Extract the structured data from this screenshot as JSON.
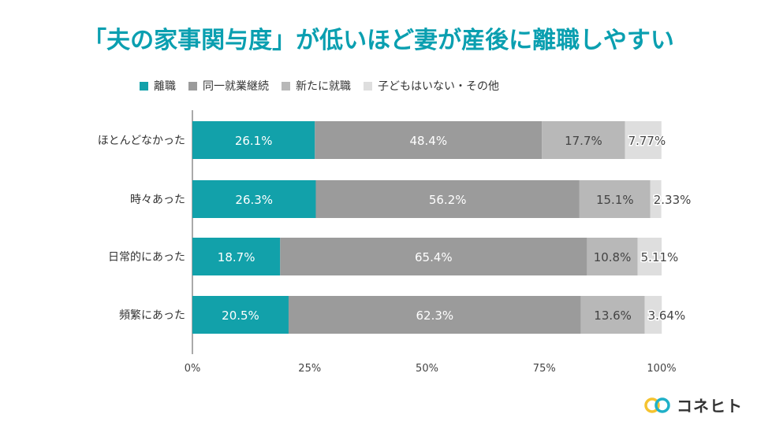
{
  "title": "「夫の家事関与度」が低いほど妻が産後に離職しやすい",
  "brand": {
    "name": "コネヒト"
  },
  "chart_data": {
    "type": "bar",
    "orientation": "horizontal",
    "stacked": true,
    "categories": [
      "ほとんどなかった",
      "時々あった",
      "日常的にあった",
      "頻繁にあった"
    ],
    "series": [
      {
        "name": "離職",
        "color": "#12a1aa",
        "values": [
          26.1,
          26.3,
          18.7,
          20.5
        ],
        "labels": [
          "26.1%",
          "26.3%",
          "18.7%",
          "20.5%"
        ]
      },
      {
        "name": "同一就業継続",
        "color": "#9b9b9b",
        "values": [
          48.4,
          56.2,
          65.4,
          62.3
        ],
        "labels": [
          "48.4%",
          "56.2%",
          "65.4%",
          "62.3%"
        ]
      },
      {
        "name": "新たに就職",
        "color": "#b8b8b8",
        "values": [
          17.7,
          15.1,
          10.8,
          13.6
        ],
        "labels": [
          "17.7%",
          "15.1%",
          "10.8%",
          "13.6%"
        ]
      },
      {
        "name": "子どもはいない・その他",
        "color": "#dedede",
        "values": [
          7.77,
          2.33,
          5.11,
          3.64
        ],
        "labels": [
          "7.77%",
          "2.33%",
          "5.11%",
          "3.64%"
        ]
      }
    ],
    "xlim": [
      0,
      100
    ],
    "xticks": [
      "0%",
      "25%",
      "50%",
      "75%",
      "100%"
    ],
    "legend_position": "top-left",
    "title": "「夫の家事関与度」が低いほど妻が産後に離職しやすい"
  }
}
